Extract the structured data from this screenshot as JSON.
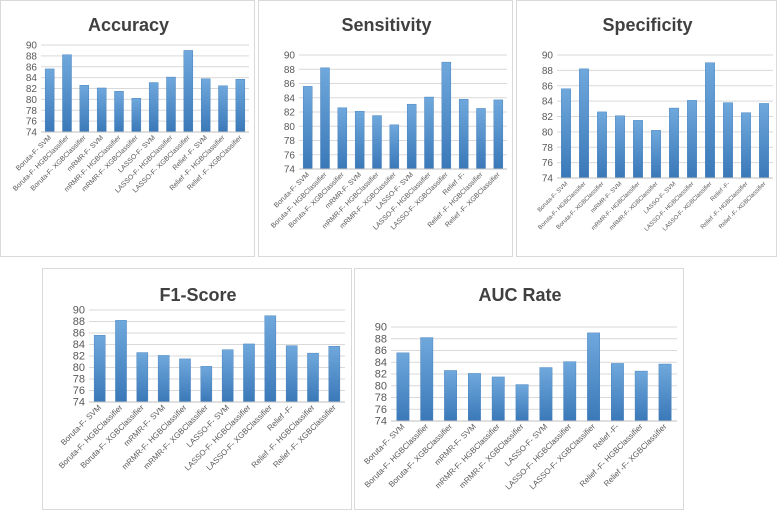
{
  "colors": {
    "bar": "#5b9bd5",
    "bar_dark": "#3a78b8",
    "grid": "#d9d9d9",
    "axis": "#bfbfbf",
    "text": "#595959",
    "title": "#404040"
  },
  "chart_data": [
    {
      "type": "bar",
      "title": "Accuracy",
      "categories": [
        "Boruta-F- SVM",
        "Boruta-F- HGBClassifier",
        "Boruta-F- XGBClassifier",
        "mRMR-F- SVM",
        "mRMR-F- HGBClassifier",
        "mRMR-F- XGBClassifier",
        "LASSO-F- SVM",
        "LASSO-F- HGBClassifier",
        "LASSO-F- XGBClassifier",
        "Relief -F- SVM",
        "Relief -F- HGBClassifier",
        "Relief -F- XGBClassifier"
      ],
      "values": [
        85.6,
        88.2,
        82.6,
        82.1,
        81.5,
        80.2,
        83.1,
        84.1,
        89.0,
        83.8,
        82.5,
        83.7
      ],
      "ylim": [
        74,
        90
      ],
      "yticks": [
        "74",
        "76",
        "78",
        "80",
        "82",
        "84",
        "86",
        "88",
        "90"
      ],
      "xlabel": "",
      "ylabel": "",
      "grid": true,
      "legend": "none"
    },
    {
      "type": "bar",
      "title": "Sensitivity",
      "categories": [
        "Boruta-F- SVM",
        "Boruta-F- HGBClassifier",
        "Boruta-F- XGBClassifier",
        "mRMR-F- SVM",
        "mRMR-F- HGBClassifier",
        "mRMR-F- XGBClassifier",
        "LASSO-F- SVM",
        "LASSO-F- HGBClassifier",
        "LASSO-F- XGBClassifier",
        "Relief -F-",
        "Relief -F- HGBClassifier",
        "Relief -F- XGBClassifier"
      ],
      "values": [
        85.6,
        88.2,
        82.6,
        82.1,
        81.5,
        80.2,
        83.1,
        84.1,
        89.0,
        83.8,
        82.5,
        83.7
      ],
      "ylim": [
        74,
        90
      ],
      "yticks": [
        "74",
        "76",
        "78",
        "80",
        "82",
        "84",
        "86",
        "88",
        "90"
      ],
      "xlabel": "",
      "ylabel": "",
      "grid": true,
      "legend": "none"
    },
    {
      "type": "bar",
      "title": "Specificity",
      "categories": [
        "Boruta-F- SVM",
        "Boruta-F- HGBClassifier",
        "Boruta-F- XGBClassifier",
        "mRMR-F- SVM",
        "mRMR-F- HGBClassifier",
        "mRMR-F- XGBClassifier",
        "LASSO-F- SVM",
        "LASSO-F- HGBClassifier",
        "LASSO-F- XGBClassifier",
        "Relief -F-",
        "Relief -F- HGBClassifier",
        "Relief -F- XGBClassifier"
      ],
      "values": [
        85.6,
        88.2,
        82.6,
        82.1,
        81.5,
        80.2,
        83.1,
        84.1,
        89.0,
        83.8,
        82.5,
        83.7
      ],
      "ylim": [
        74,
        90
      ],
      "yticks": [
        "74",
        "76",
        "78",
        "80",
        "82",
        "84",
        "86",
        "88",
        "90"
      ],
      "xlabel": "",
      "ylabel": "",
      "grid": true,
      "legend": "none"
    },
    {
      "type": "bar",
      "title": "F1-Score",
      "categories": [
        "Boruta-F- SVM",
        "Boruta-F- HGBClassifier",
        "Boruta-F- XGBClassifier",
        "mRMR-F- SVM",
        "mRMR-F- HGBClassifier",
        "mRMR-F- XGBClassifier",
        "LASSO-F- SVM",
        "LASSO-F- HGBClassifier",
        "LASSO-F- XGBClassifier",
        "Relief -F-",
        "Relief -F- HGBClassifier",
        "Relief -F- XGBClassifier"
      ],
      "values": [
        85.6,
        88.2,
        82.6,
        82.1,
        81.5,
        80.2,
        83.1,
        84.1,
        89.0,
        83.8,
        82.5,
        83.7
      ],
      "ylim": [
        74,
        90
      ],
      "yticks": [
        "74",
        "76",
        "78",
        "80",
        "82",
        "84",
        "86",
        "88",
        "90"
      ],
      "xlabel": "",
      "ylabel": "",
      "grid": true,
      "legend": "none"
    },
    {
      "type": "bar",
      "title": "AUC Rate",
      "categories": [
        "Boruta-F- SVM",
        "Boruta-F- HGBClassifier",
        "Boruta-F- XGBClassifier",
        "mRMR-F- SVM",
        "mRMR-F- HGBClassifier",
        "mRMR-F- XGBClassifier",
        "LASSO-F- SVM",
        "LASSO-F- HGBClassifier",
        "LASSO-F- XGBClassifier",
        "Relief -F-",
        "Relief -F- HGBClassifier",
        "Relief -F- XGBClassifier"
      ],
      "values": [
        85.6,
        88.2,
        82.6,
        82.1,
        81.5,
        80.2,
        83.1,
        84.1,
        89.0,
        83.8,
        82.5,
        83.7
      ],
      "ylim": [
        74,
        90
      ],
      "yticks": [
        "74",
        "76",
        "78",
        "80",
        "82",
        "84",
        "86",
        "88",
        "90"
      ],
      "xlabel": "",
      "ylabel": "",
      "grid": true,
      "legend": "none"
    }
  ]
}
